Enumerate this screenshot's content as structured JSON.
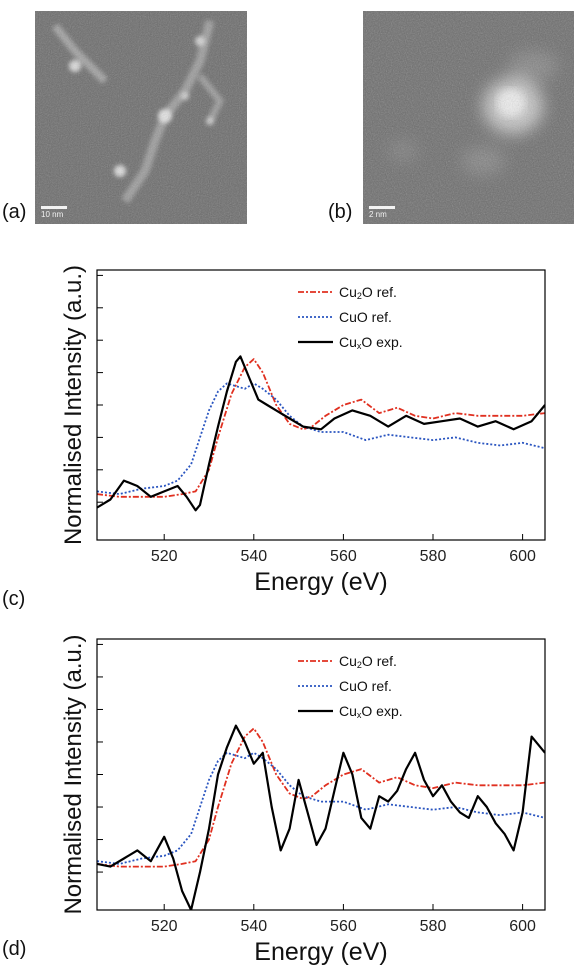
{
  "panels": {
    "a": {
      "label": "(a)",
      "scale_text": "10 nm"
    },
    "b": {
      "label": "(b)",
      "scale_text": "2 nm"
    },
    "c": {
      "label": "(c)"
    },
    "d": {
      "label": "(d)"
    }
  },
  "chart_data": [
    {
      "type": "line",
      "panel": "(c)",
      "xlabel": "Energy (eV)",
      "ylabel": "Normalised Intensity (a.u.)",
      "xlim": [
        505,
        605
      ],
      "ylim": [
        0,
        1
      ],
      "xticks": [
        520,
        540,
        560,
        580,
        600
      ],
      "yticks": [
        0.14,
        0.26,
        0.38,
        0.5,
        0.62,
        0.74,
        0.86,
        0.98
      ],
      "grid": false,
      "legend_position": "top-right",
      "series": [
        {
          "name": "Cu2O ref.",
          "legend_base": "Cu",
          "legend_sub": "2",
          "legend_rest": "O ref.",
          "color": "#e03020",
          "dash": "6,2,2,2",
          "x": [
            505,
            510,
            515,
            520,
            524,
            527,
            530,
            532,
            535,
            538,
            540,
            542,
            545,
            548,
            551,
            553,
            556,
            560,
            564,
            568,
            572,
            576,
            580,
            585,
            590,
            595,
            600,
            605
          ],
          "y": [
            0.17,
            0.16,
            0.16,
            0.16,
            0.17,
            0.18,
            0.26,
            0.38,
            0.54,
            0.64,
            0.67,
            0.62,
            0.5,
            0.43,
            0.41,
            0.42,
            0.46,
            0.5,
            0.52,
            0.47,
            0.49,
            0.46,
            0.45,
            0.47,
            0.46,
            0.46,
            0.46,
            0.47
          ]
        },
        {
          "name": "CuO ref.",
          "legend_base": "CuO ref.",
          "legend_sub": "",
          "legend_rest": "",
          "color": "#2a55c0",
          "dash": "2,2",
          "x": [
            505,
            510,
            515,
            520,
            523,
            526,
            528,
            530,
            532,
            534,
            536,
            538,
            540,
            542,
            545,
            548,
            551,
            555,
            560,
            565,
            570,
            575,
            580,
            585,
            590,
            595,
            600,
            605
          ],
          "y": [
            0.18,
            0.17,
            0.19,
            0.2,
            0.22,
            0.28,
            0.38,
            0.48,
            0.55,
            0.58,
            0.57,
            0.56,
            0.58,
            0.56,
            0.52,
            0.46,
            0.42,
            0.4,
            0.4,
            0.37,
            0.39,
            0.38,
            0.37,
            0.38,
            0.36,
            0.35,
            0.36,
            0.34
          ]
        },
        {
          "name": "CuxO exp.",
          "legend_base": "Cu",
          "legend_sub": "x",
          "legend_rest": "O exp.",
          "color": "#000000",
          "dash": "",
          "x": [
            505,
            508,
            511,
            514,
            517,
            520,
            523,
            525,
            527,
            528,
            530,
            532,
            534,
            536,
            537,
            539,
            541,
            543,
            545,
            548,
            551,
            555,
            558,
            562,
            566,
            570,
            574,
            578,
            582,
            586,
            590,
            594,
            598,
            602,
            605
          ],
          "y": [
            0.12,
            0.15,
            0.22,
            0.2,
            0.16,
            0.18,
            0.2,
            0.16,
            0.11,
            0.13,
            0.28,
            0.42,
            0.55,
            0.66,
            0.68,
            0.6,
            0.52,
            0.5,
            0.48,
            0.45,
            0.42,
            0.41,
            0.45,
            0.48,
            0.46,
            0.42,
            0.46,
            0.43,
            0.44,
            0.45,
            0.42,
            0.44,
            0.41,
            0.44,
            0.5
          ]
        }
      ]
    },
    {
      "type": "line",
      "panel": "(d)",
      "xlabel": "Energy (eV)",
      "ylabel": "Normalised Intensity (a.u.)",
      "xlim": [
        505,
        605
      ],
      "ylim": [
        0,
        1
      ],
      "xticks": [
        520,
        540,
        560,
        580,
        600
      ],
      "yticks": [
        0.14,
        0.26,
        0.38,
        0.5,
        0.62,
        0.74,
        0.86,
        0.98
      ],
      "grid": false,
      "legend_position": "top-right",
      "series": [
        {
          "name": "Cu2O ref.",
          "legend_base": "Cu",
          "legend_sub": "2",
          "legend_rest": "O ref.",
          "color": "#e03020",
          "dash": "6,2,2,2",
          "x": [
            505,
            510,
            515,
            520,
            524,
            527,
            530,
            532,
            535,
            538,
            540,
            542,
            545,
            548,
            551,
            553,
            556,
            560,
            564,
            568,
            572,
            576,
            580,
            585,
            590,
            595,
            600,
            605
          ],
          "y": [
            0.17,
            0.16,
            0.16,
            0.16,
            0.17,
            0.18,
            0.26,
            0.38,
            0.54,
            0.64,
            0.67,
            0.62,
            0.5,
            0.43,
            0.41,
            0.42,
            0.46,
            0.5,
            0.52,
            0.47,
            0.49,
            0.46,
            0.45,
            0.47,
            0.46,
            0.46,
            0.46,
            0.47
          ]
        },
        {
          "name": "CuO ref.",
          "legend_base": "CuO ref.",
          "legend_sub": "",
          "legend_rest": "",
          "color": "#2a55c0",
          "dash": "2,2",
          "x": [
            505,
            510,
            515,
            520,
            523,
            526,
            528,
            530,
            532,
            534,
            536,
            538,
            540,
            542,
            545,
            548,
            551,
            555,
            560,
            565,
            570,
            575,
            580,
            585,
            590,
            595,
            600,
            605
          ],
          "y": [
            0.18,
            0.17,
            0.19,
            0.2,
            0.22,
            0.28,
            0.38,
            0.48,
            0.55,
            0.58,
            0.57,
            0.56,
            0.58,
            0.56,
            0.52,
            0.46,
            0.42,
            0.4,
            0.4,
            0.37,
            0.39,
            0.38,
            0.37,
            0.38,
            0.36,
            0.35,
            0.36,
            0.34
          ]
        },
        {
          "name": "CuxO exp.",
          "legend_base": "Cu",
          "legend_sub": "x",
          "legend_rest": "O exp.",
          "color": "#000000",
          "dash": "",
          "x": [
            505,
            508,
            511,
            514,
            517,
            520,
            522,
            524,
            526,
            528,
            530,
            532,
            534,
            536,
            538,
            540,
            542,
            544,
            546,
            548,
            550,
            552,
            554,
            556,
            558,
            560,
            562,
            564,
            566,
            568,
            570,
            572,
            574,
            576,
            578,
            580,
            582,
            584,
            586,
            588,
            590,
            592,
            594,
            596,
            598,
            600,
            602,
            605
          ],
          "y": [
            0.17,
            0.16,
            0.19,
            0.22,
            0.18,
            0.27,
            0.19,
            0.07,
            0.0,
            0.14,
            0.3,
            0.5,
            0.6,
            0.68,
            0.62,
            0.54,
            0.58,
            0.38,
            0.22,
            0.3,
            0.48,
            0.36,
            0.24,
            0.3,
            0.44,
            0.58,
            0.5,
            0.34,
            0.3,
            0.42,
            0.4,
            0.44,
            0.52,
            0.58,
            0.48,
            0.42,
            0.46,
            0.4,
            0.36,
            0.34,
            0.42,
            0.38,
            0.32,
            0.28,
            0.22,
            0.36,
            0.64,
            0.58
          ]
        }
      ]
    }
  ]
}
